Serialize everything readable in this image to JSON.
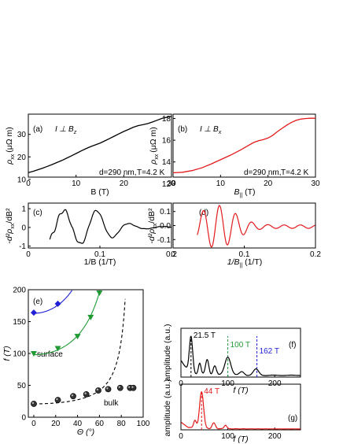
{
  "chart_data": [
    {
      "id": "a",
      "type": "line",
      "panel_label": "(a)",
      "annotation": "I ⊥ B",
      "annotation_sub": "z",
      "note_d": "d=290 nm,",
      "note_T": "T=4.2 K",
      "xlabel": "B (T)",
      "ylabel_main": "ρ",
      "ylabel_sub": "xx",
      "ylabel_unit": "(μΩ m)",
      "xlim": [
        0,
        30
      ],
      "ylim": [
        11,
        39
      ],
      "xticks": [
        "0",
        "10",
        "20",
        "30"
      ],
      "yticks": [
        "10",
        "20",
        "30"
      ],
      "line_color": "#000000",
      "series": [
        {
          "x": [
            0,
            1,
            2,
            3,
            4,
            5,
            6,
            7,
            8,
            9,
            10,
            11,
            12,
            13,
            14,
            15,
            16,
            17,
            18,
            19,
            20,
            21,
            22,
            23,
            24,
            25,
            26,
            27,
            28,
            29,
            30
          ],
          "y": [
            13,
            13.6,
            14.3,
            15,
            15.8,
            16.6,
            17.5,
            18.4,
            19.4,
            20.4,
            21.5,
            22.6,
            23.6,
            24.5,
            25.3,
            26.1,
            27.1,
            28.1,
            29.2,
            30.3,
            31.3,
            32.2,
            33.2,
            33.9,
            34.3,
            34.8,
            35.5,
            36.3,
            37.1,
            37.6,
            38
          ]
        }
      ]
    },
    {
      "id": "b",
      "type": "line",
      "panel_label": "(b)",
      "annotation": "I ⊥ B",
      "annotation_sub": "x",
      "note_d": "d=290 nm,",
      "note_T": "T=4.2 K",
      "xlabel": "B",
      "xlabel_sub": "||",
      "xlabel_unit": " (T)",
      "ylabel_main": "ρ",
      "ylabel_sub": "xx",
      "ylabel_unit": "(μΩ m)",
      "xlim": [
        0,
        30
      ],
      "ylim": [
        12.6,
        18.4
      ],
      "xticks": [
        "0",
        "10",
        "20",
        "30"
      ],
      "yticks": [
        "12",
        "14",
        "16",
        "18"
      ],
      "line_color": "#e41a1c",
      "series": [
        {
          "x": [
            0,
            2,
            4,
            6,
            8,
            10,
            12,
            14,
            15,
            16,
            17,
            18,
            19,
            20,
            21,
            22,
            23,
            24,
            25,
            26,
            27,
            28,
            29,
            30
          ],
          "y": [
            13.0,
            13.05,
            13.2,
            13.45,
            13.8,
            14.2,
            14.6,
            15.05,
            15.3,
            15.55,
            15.8,
            15.95,
            16.05,
            16.2,
            16.45,
            16.8,
            17.1,
            17.4,
            17.65,
            17.85,
            17.95,
            18.0,
            18.02,
            18.02
          ]
        }
      ]
    },
    {
      "id": "c",
      "type": "line",
      "panel_label": "(c)",
      "xlabel": "1/B (1/T)",
      "ylabel_main": "-d²ρ",
      "ylabel_sub": "xx",
      "ylabel_unit": "/dB²",
      "xlim": [
        0,
        0.2
      ],
      "ylim": [
        -1.1,
        1.3
      ],
      "xticks": [
        "0",
        "0.1",
        "0.2"
      ],
      "yticks": [
        "-1",
        "0",
        "1"
      ],
      "line_color": "#000000"
    },
    {
      "id": "d",
      "type": "line",
      "panel_label": "(d)",
      "xlabel": "1/B",
      "xlabel_sub": "||",
      "xlabel_unit": " (1/T)",
      "ylabel_main": "-d²ρ",
      "ylabel_sub": "xx",
      "ylabel_unit": "/dB²",
      "xlim": [
        0,
        0.2
      ],
      "ylim": [
        -0.16,
        0.16
      ],
      "xticks": [
        "0",
        "0.1",
        "0.2"
      ],
      "yticks": [
        "-0.1",
        "0.0",
        "0.1"
      ],
      "line_color": "#e41a1c"
    },
    {
      "id": "e",
      "type": "scatter",
      "panel_label": "(e)",
      "xlabel": "Θ (°)",
      "ylabel": "f (T)",
      "xlim": [
        -5,
        100
      ],
      "ylim": [
        0,
        200
      ],
      "xticks": [
        "0",
        "20",
        "40",
        "60",
        "80",
        "100"
      ],
      "yticks": [
        "0",
        "50",
        "100",
        "150",
        "200"
      ],
      "label_surface": "surface",
      "label_bulk": "bulk",
      "series": [
        {
          "marker": "diamond",
          "color": "#1f1fd6",
          "x": [
            0,
            22
          ],
          "y": [
            164,
            178
          ]
        },
        {
          "marker": "triangle-down",
          "color": "#1f9a33",
          "x": [
            0,
            22,
            40,
            52,
            60
          ],
          "y": [
            100,
            108,
            127,
            157,
            195
          ]
        },
        {
          "marker": "sphere",
          "color": "#000000",
          "x": [
            0,
            22,
            36,
            48,
            59,
            68,
            79,
            88,
            91
          ],
          "y": [
            21,
            27,
            33,
            36,
            42,
            44,
            46,
            46,
            46
          ]
        }
      ]
    },
    {
      "id": "f",
      "type": "line",
      "panel_label": "(f)",
      "xlabel": "f (T)",
      "ylabel": "amplitude (a.u.)",
      "xlim": [
        0,
        255
      ],
      "xticks": [
        "0",
        "100",
        "200"
      ],
      "line_color": "#000000",
      "peaks": [
        {
          "label": "21.5 T",
          "x": 21.5,
          "color": "#000000"
        },
        {
          "label": "100 T",
          "x": 100,
          "color": "#1f9a33"
        },
        {
          "label": "162 T",
          "x": 162,
          "color": "#1f1fd6"
        }
      ]
    },
    {
      "id": "g",
      "type": "line",
      "panel_label": "(g)",
      "xlabel": "f (T)",
      "ylabel": "amplitude (a.u.)",
      "xlim": [
        0,
        255
      ],
      "xticks": [
        "0",
        "100",
        "200"
      ],
      "line_color": "#e41a1c",
      "peaks": [
        {
          "label": "44 T",
          "x": 44,
          "color": "#e41a1c"
        }
      ]
    }
  ]
}
